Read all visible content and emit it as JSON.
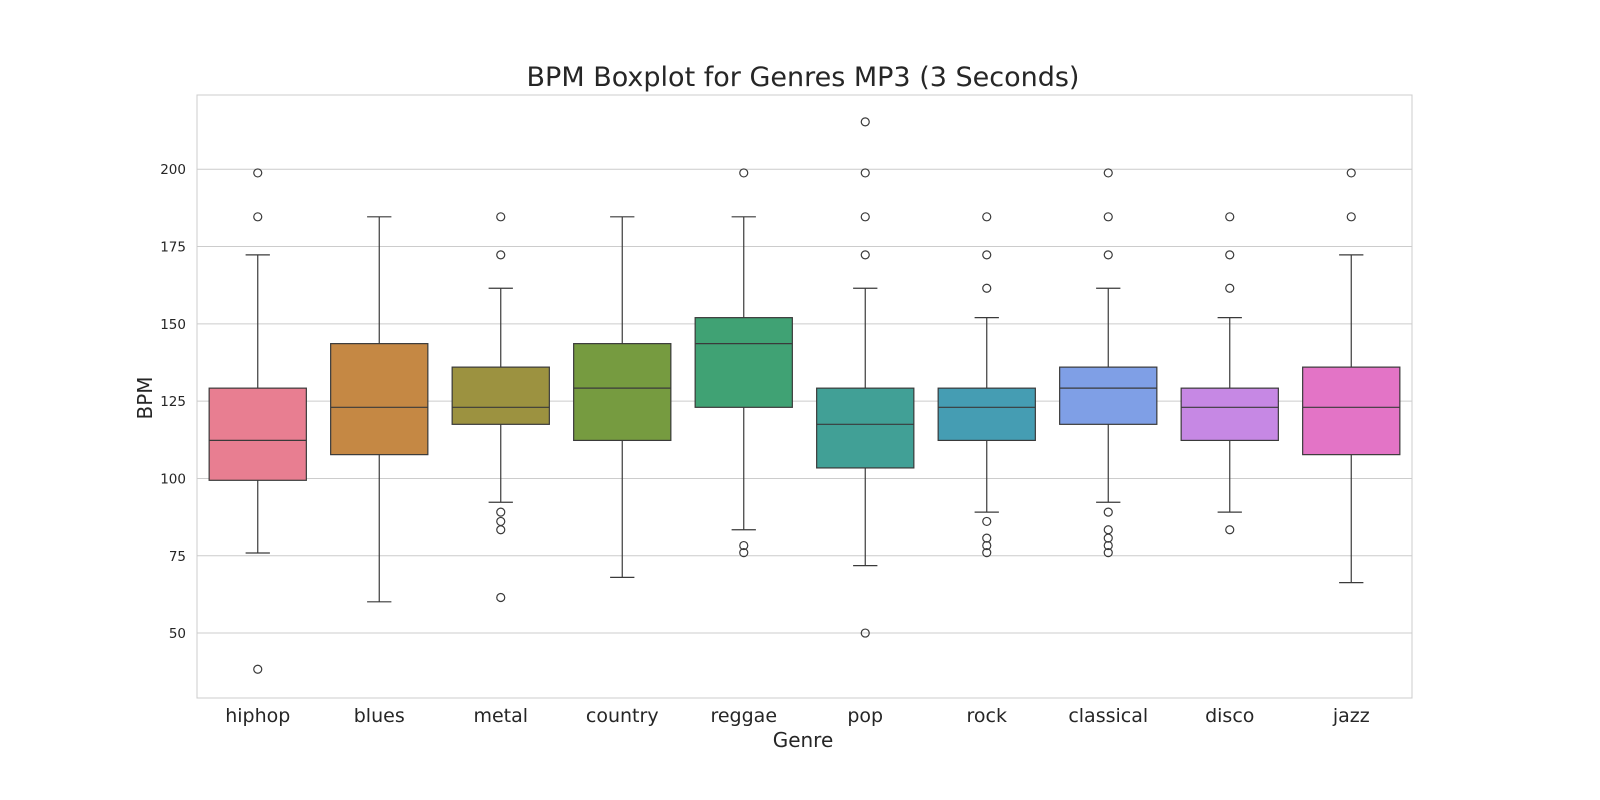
{
  "chart_data": {
    "type": "boxplot",
    "title": "BPM Boxplot for Genres MP3 (3 Seconds)",
    "xlabel": "Genre",
    "ylabel": "BPM",
    "ylim": [
      29,
      224
    ],
    "yticks": [
      "50",
      "75",
      "100",
      "125",
      "150",
      "175",
      "200"
    ],
    "grid": "horizontal",
    "categories": [
      "hiphop",
      "blues",
      "metal",
      "country",
      "reggae",
      "pop",
      "rock",
      "classical",
      "disco",
      "jazz"
    ],
    "colors": [
      "#e87e91",
      "#c58844",
      "#9c9240",
      "#769b40",
      "#40a274",
      "#41a096",
      "#459db3",
      "#7f9fe6",
      "#c688e4",
      "#e374c6"
    ],
    "series": [
      {
        "whisker_low": 75.9,
        "q1": 99.4,
        "median": 112.3,
        "q3": 129.2,
        "whisker_high": 172.3,
        "outliers": [
          38.3,
          184.6,
          198.8
        ]
      },
      {
        "whisker_low": 60.1,
        "q1": 107.7,
        "median": 123.0,
        "q3": 143.6,
        "whisker_high": 184.6,
        "outliers": []
      },
      {
        "whisker_low": 92.3,
        "q1": 117.5,
        "median": 123.0,
        "q3": 136.0,
        "whisker_high": 161.5,
        "outliers": [
          61.5,
          83.4,
          86.1,
          89.1,
          172.3,
          184.6
        ]
      },
      {
        "whisker_low": 68.0,
        "q1": 112.3,
        "median": 129.2,
        "q3": 143.6,
        "whisker_high": 184.6,
        "outliers": []
      },
      {
        "whisker_low": 83.4,
        "q1": 123.0,
        "median": 143.6,
        "q3": 152.0,
        "whisker_high": 184.6,
        "outliers": [
          76.0,
          78.3,
          198.8
        ]
      },
      {
        "whisker_low": 71.8,
        "q1": 103.4,
        "median": 117.5,
        "q3": 129.2,
        "whisker_high": 161.5,
        "outliers": [
          50.0,
          172.3,
          184.6,
          198.8,
          215.3
        ]
      },
      {
        "whisker_low": 89.1,
        "q1": 112.3,
        "median": 123.0,
        "q3": 129.2,
        "whisker_high": 152.0,
        "outliers": [
          76.0,
          78.3,
          80.7,
          86.1,
          161.5,
          172.3,
          184.6
        ]
      },
      {
        "whisker_low": 92.3,
        "q1": 117.5,
        "median": 129.2,
        "q3": 136.0,
        "whisker_high": 161.5,
        "outliers": [
          76.0,
          78.3,
          80.7,
          83.4,
          89.1,
          172.3,
          184.6,
          198.8
        ]
      },
      {
        "whisker_low": 89.1,
        "q1": 112.3,
        "median": 123.0,
        "q3": 129.2,
        "whisker_high": 152.0,
        "outliers": [
          83.4,
          161.5,
          172.3,
          184.6
        ]
      },
      {
        "whisker_low": 66.3,
        "q1": 107.7,
        "median": 123.0,
        "q3": 136.0,
        "whisker_high": 172.3,
        "outliers": [
          184.6,
          198.8
        ]
      }
    ]
  }
}
